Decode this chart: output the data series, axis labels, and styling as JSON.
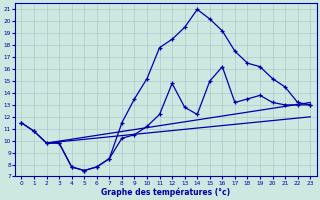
{
  "xlabel": "Graphe des températures (°c)",
  "background_color": "#cce8e0",
  "grid_color": "#aacccc",
  "line_color": "#0000aa",
  "xlim": [
    -0.5,
    23.5
  ],
  "ylim": [
    7,
    21.5
  ],
  "yticks": [
    7,
    8,
    9,
    10,
    11,
    12,
    13,
    14,
    15,
    16,
    17,
    18,
    19,
    20,
    21
  ],
  "xticks": [
    0,
    1,
    2,
    3,
    4,
    5,
    6,
    7,
    8,
    9,
    10,
    11,
    12,
    13,
    14,
    15,
    16,
    17,
    18,
    19,
    20,
    21,
    22,
    23
  ],
  "curve_main_x": [
    0,
    1,
    2,
    3,
    4,
    5,
    6,
    7,
    8,
    9,
    10,
    11,
    12,
    13,
    14,
    15,
    16,
    17,
    18,
    19,
    20,
    21,
    22,
    23
  ],
  "curve_main_y": [
    11.5,
    10.8,
    9.8,
    9.8,
    7.8,
    7.5,
    7.8,
    8.5,
    11.5,
    13.5,
    15.2,
    17.8,
    18.5,
    19.5,
    21.0,
    20.2,
    19.2,
    17.5,
    16.5,
    16.2,
    15.2,
    14.5,
    13.2,
    13.0
  ],
  "curve_bot_x": [
    0,
    1,
    2,
    3,
    4,
    5,
    6,
    7,
    8,
    9,
    10,
    11,
    12,
    13,
    14,
    15,
    16,
    17,
    18,
    19,
    20,
    21,
    22,
    23
  ],
  "curve_bot_y": [
    11.5,
    10.8,
    9.8,
    9.8,
    7.8,
    7.5,
    7.8,
    8.5,
    10.2,
    10.5,
    11.2,
    12.2,
    14.8,
    12.8,
    12.2,
    15.0,
    16.2,
    13.2,
    13.5,
    13.8,
    13.2,
    13.0,
    13.0,
    13.0
  ],
  "trend1_x": [
    2,
    23
  ],
  "trend1_y": [
    9.8,
    13.2
  ],
  "trend2_x": [
    2,
    23
  ],
  "trend2_y": [
    9.8,
    12.0
  ]
}
